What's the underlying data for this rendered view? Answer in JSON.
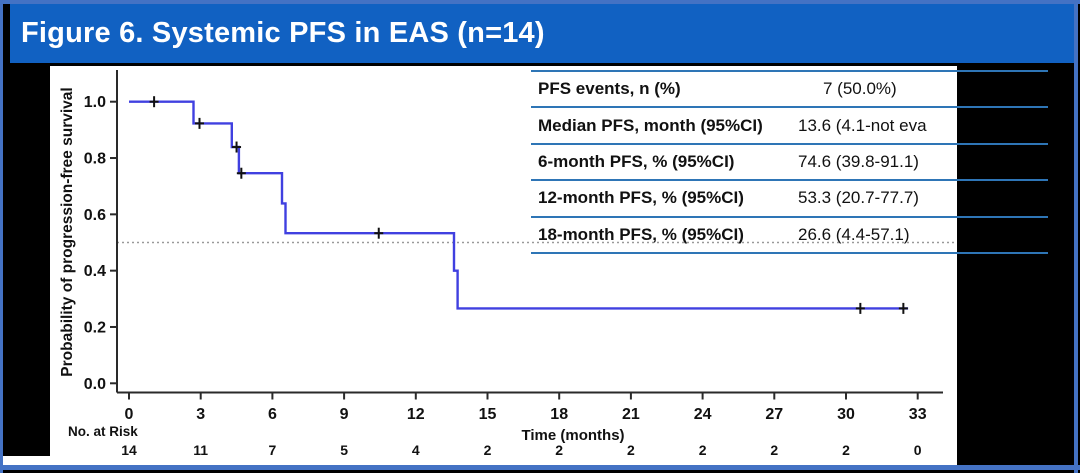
{
  "title": "Figure 6. Systemic PFS in EAS (n=14)",
  "colors": {
    "header_blue": "#1161C2",
    "slide_border_blue": "#4472C4",
    "table_line_blue": "#2E75B6",
    "curve_blue": "#4040E0",
    "reference_line_gray": "#999999",
    "axis_black": "#2A2A2A",
    "text_black": "#111111",
    "panel_white": "#FFFFFF",
    "background_black": "#000000"
  },
  "stats_table": {
    "rows": [
      {
        "label": "PFS events, n (%)",
        "value": "7 (50.0%)"
      },
      {
        "label": "Median PFS, month (95%CI)",
        "value": "13.6 (4.1-not eva"
      },
      {
        "label": "6-month PFS, % (95%CI)",
        "value": "74.6 (39.8-91.1)"
      },
      {
        "label": "12-month PFS, % (95%CI)",
        "value": "53.3 (20.7-77.7)"
      },
      {
        "label": "18-month PFS, % (95%CI)",
        "value": "26.6 (4.4-57.1)"
      }
    ]
  },
  "chart_data": {
    "type": "line",
    "subtype": "kaplan_meier_step_curve",
    "title": "",
    "xlabel": "Time (months)",
    "ylabel": "Probability of progression-free survival",
    "xlim": [
      0,
      33
    ],
    "ylim": [
      0,
      1.0
    ],
    "xticks": [
      0,
      3,
      6,
      9,
      12,
      15,
      18,
      21,
      24,
      27,
      30,
      33
    ],
    "yticks": [
      0.0,
      0.2,
      0.4,
      0.6,
      0.8,
      1.0
    ],
    "grid": false,
    "legend": "none",
    "reference_line_y": 0.5,
    "steps": [
      [
        0,
        1.0
      ],
      [
        2.7,
        1.0
      ],
      [
        2.7,
        0.923
      ],
      [
        4.3,
        0.923
      ],
      [
        4.3,
        0.839
      ],
      [
        4.6,
        0.839
      ],
      [
        4.6,
        0.746
      ],
      [
        6.4,
        0.746
      ],
      [
        6.4,
        0.639
      ],
      [
        6.55,
        0.639
      ],
      [
        6.55,
        0.533
      ],
      [
        13.6,
        0.533
      ],
      [
        13.6,
        0.4
      ],
      [
        13.75,
        0.4
      ],
      [
        13.75,
        0.266
      ],
      [
        32.6,
        0.266
      ]
    ],
    "censor_marks": [
      [
        1.05,
        1.0
      ],
      [
        2.95,
        0.923
      ],
      [
        4.5,
        0.839
      ],
      [
        4.7,
        0.746
      ],
      [
        10.45,
        0.533
      ],
      [
        30.6,
        0.266
      ],
      [
        32.4,
        0.266
      ]
    ],
    "no_at_risk": {
      "label": "No. at Risk",
      "times": [
        0,
        3,
        6,
        9,
        12,
        15,
        18,
        21,
        24,
        27,
        30,
        33
      ],
      "counts": [
        14,
        11,
        7,
        5,
        4,
        2,
        2,
        2,
        2,
        2,
        2,
        0
      ]
    }
  }
}
